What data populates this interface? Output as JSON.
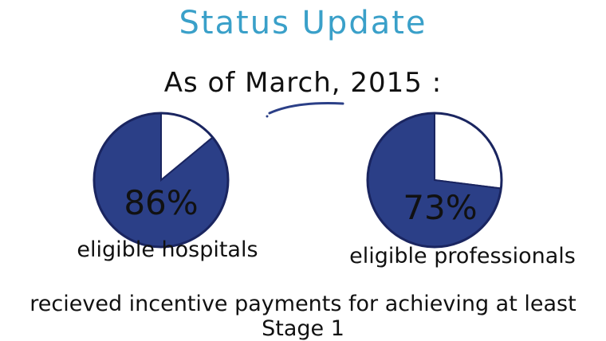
{
  "title": "Status Update",
  "date_line": "As of March, 2015 :",
  "footer": "recieved incentive payments for achieving at least Stage 1",
  "colors": {
    "pie_fill": "#2b3f87",
    "slice_fill": "#ffffff",
    "title": "#3aa0c9",
    "accent_line": "#2b3f87"
  },
  "chart_data": [
    {
      "type": "pie",
      "title": "",
      "percent_label": "86%",
      "caption": "eligible hospitals",
      "slices": [
        {
          "value": 86
        },
        {
          "value": 14
        }
      ]
    },
    {
      "type": "pie",
      "title": "",
      "percent_label": "73%",
      "caption": "eligible professionals",
      "slices": [
        {
          "value": 73
        },
        {
          "value": 27
        }
      ]
    }
  ]
}
